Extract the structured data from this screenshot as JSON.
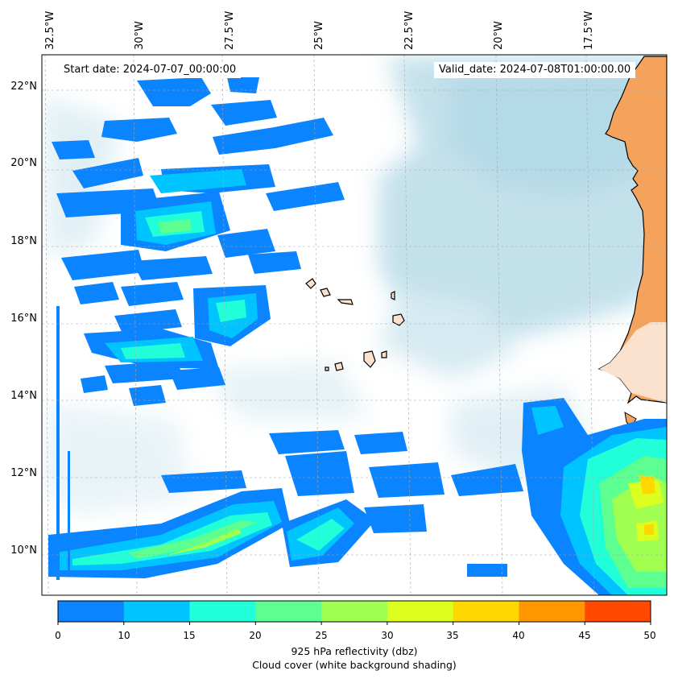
{
  "header": {
    "start_label": "Start date: 2024-07-07_00:00:00",
    "valid_label": "Valid_date: 2024-07-08T01:00:00.00"
  },
  "axes": {
    "lon_labels": [
      "32.5°W",
      "30°W",
      "27.5°W",
      "25°W",
      "22.5°W",
      "20°W",
      "17.5°W"
    ],
    "lat_labels": [
      "22°N",
      "20°N",
      "18°N",
      "16°N",
      "14°N",
      "12°N",
      "10°N"
    ]
  },
  "colorbar": {
    "ticks": [
      "0",
      "10",
      "15",
      "20",
      "25",
      "30",
      "35",
      "40",
      "45",
      "50"
    ],
    "colors": [
      "#0a84ff",
      "#00c4ff",
      "#20ffd8",
      "#5cff90",
      "#a0ff50",
      "#dcff20",
      "#ffd800",
      "#ff9800",
      "#ff4a00"
    ],
    "title_line1": "925 hPa reflectivity (dbz)",
    "title_line2": "Cloud cover (white background shading)"
  },
  "colors": {
    "land": "#f5a35c",
    "land_light": "#fbe2cf",
    "cloud_shade": "#bcdde8",
    "border": "#000000"
  }
}
